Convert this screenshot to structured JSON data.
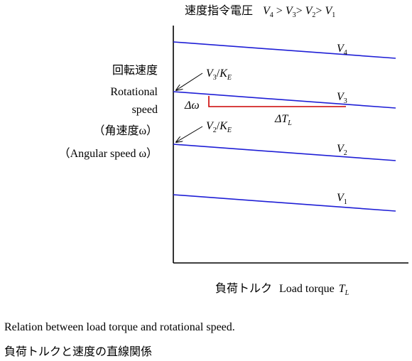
{
  "header": {
    "jp": "速度指令電圧",
    "order": [
      "V4",
      "V3",
      "V2",
      "V1"
    ]
  },
  "yaxis": {
    "jp": "回転速度",
    "en_line1": "Rotational",
    "en_line2": "speed",
    "jp_paren": "（角速度ω）",
    "en_paren": "（Angular speed ω）"
  },
  "xaxis": {
    "jp": "負荷トルク",
    "en": "Load torque",
    "symbol": "T",
    "sub": "L"
  },
  "lines": [
    {
      "name": "V",
      "sub": "4"
    },
    {
      "name": "V",
      "sub": "3"
    },
    {
      "name": "V",
      "sub": "2"
    },
    {
      "name": "V",
      "sub": "1"
    }
  ],
  "annotations": {
    "v3_over_ke": {
      "num": "V",
      "num_sub": "3",
      "den": "K",
      "den_sub": "E"
    },
    "v2_over_ke": {
      "num": "V",
      "num_sub": "2",
      "den": "K",
      "den_sub": "E"
    },
    "delta_omega": "Δω",
    "delta_tl": {
      "prefix": "ΔT",
      "sub": "L"
    }
  },
  "caption": {
    "en": "Relation between load torque and rotational speed.",
    "jp": "負荷トルクと速度の直線関係"
  },
  "colors": {
    "line": "#1f1fd6",
    "delta": "#cc0000",
    "axis": "#000000"
  }
}
